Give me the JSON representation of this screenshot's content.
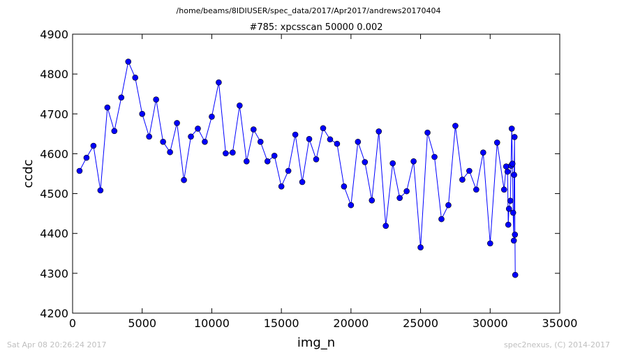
{
  "header": {
    "path": "/home/beams/8IDIUSER/spec_data/2017/Apr2017/andrews20170404"
  },
  "footer": {
    "timestamp": "Sat Apr 08 20:26:24 2017",
    "credit": "spec2nexus, (C) 2014-2017"
  },
  "chart_data": {
    "type": "line",
    "title": "#785: xpcsscan 50000 0.002",
    "xlabel": "img_n",
    "ylabel": "ccdc",
    "xlim": [
      0,
      35000
    ],
    "ylim": [
      4200,
      4900
    ],
    "xticks": [
      0,
      5000,
      10000,
      15000,
      20000,
      25000,
      30000,
      35000
    ],
    "yticks": [
      4200,
      4300,
      4400,
      4500,
      4600,
      4700,
      4800,
      4900
    ],
    "grid": false,
    "legend": "none",
    "color": "#0000ff",
    "marker": "circle",
    "series": [
      {
        "x": [
          500,
          1000,
          1500,
          2000,
          2500,
          3000,
          3500,
          4000,
          4500,
          5000,
          5500,
          6000,
          6500,
          7000,
          7500,
          8000,
          8500,
          9000,
          9500,
          10000,
          10500,
          11000,
          11500,
          12000,
          12500,
          13000,
          13500,
          14000,
          14500,
          15000,
          15500,
          16000,
          16500,
          17000,
          17500,
          18000,
          18500,
          19000,
          19500,
          20000,
          20500,
          21000,
          21500,
          22000,
          22500,
          23000,
          23500,
          24000,
          24500,
          25000,
          25500,
          26000,
          26500,
          27000,
          27500,
          28000,
          28500,
          29000,
          29500,
          30000,
          30500,
          31000,
          31150,
          31250,
          31300,
          31350,
          31450,
          31500,
          31550,
          31600,
          31650,
          31700,
          31720,
          31750,
          31780,
          31800
        ],
        "y": [
          4557,
          4590,
          4620,
          4508,
          4716,
          4657,
          4741,
          4831,
          4791,
          4700,
          4643,
          4736,
          4630,
          4604,
          4677,
          4534,
          4643,
          4663,
          4630,
          4693,
          4779,
          4601,
          4603,
          4721,
          4581,
          4661,
          4630,
          4581,
          4595,
          4518,
          4557,
          4648,
          4529,
          4637,
          4586,
          4664,
          4636,
          4625,
          4518,
          4471,
          4630,
          4579,
          4483,
          4656,
          4419,
          4576,
          4489,
          4506,
          4581,
          4365,
          4653,
          4592,
          4436,
          4471,
          4670,
          4535,
          4557,
          4510,
          4603,
          4375,
          4628,
          4510,
          4568,
          4555,
          4422,
          4462,
          4482,
          4570,
          4663,
          4575,
          4452,
          4382,
          4547,
          4642,
          4397,
          4296
        ]
      }
    ]
  }
}
